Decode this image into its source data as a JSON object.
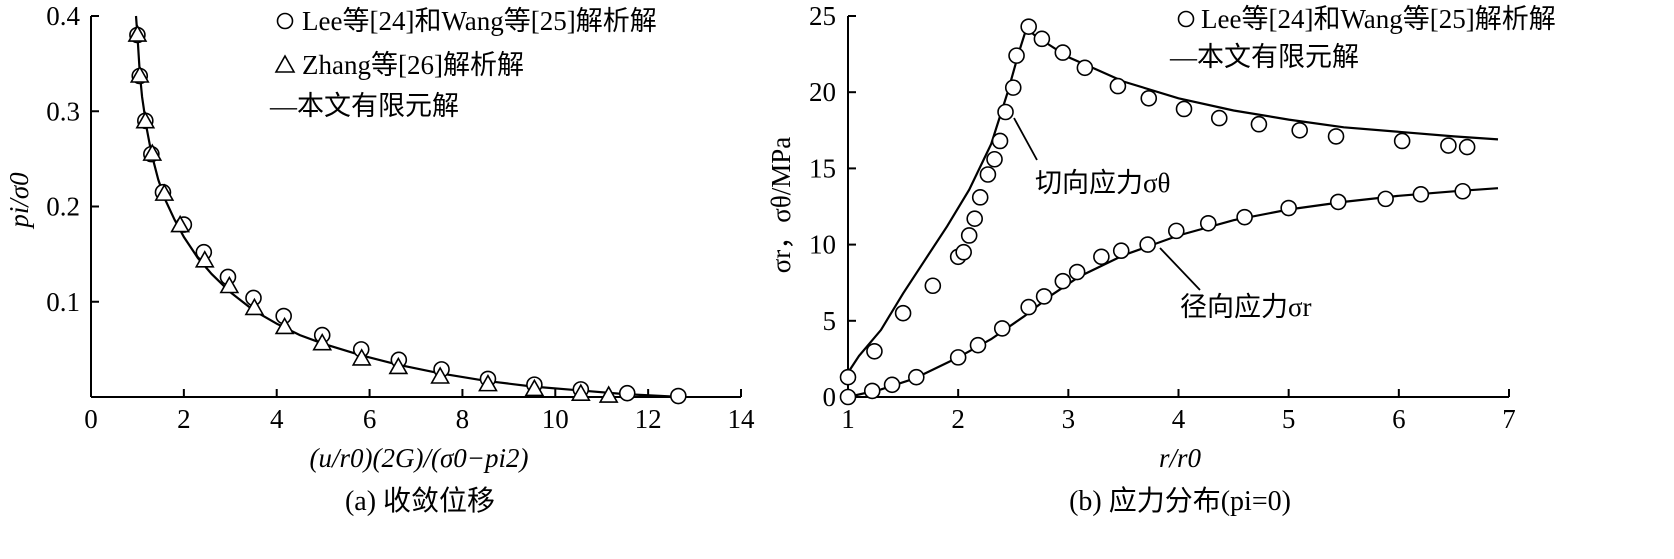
{
  "chart_data": [
    {
      "type": "scatter",
      "caption": "(a) 收敛位移",
      "xlabel": "(u/r0)(2G)/(σ0−pi2)",
      "ylabel": "pi/σ0",
      "xlim": [
        0,
        14
      ],
      "ylim": [
        0,
        0.4
      ],
      "x_ticks": [
        "0",
        "2",
        "4",
        "6",
        "8",
        "10",
        "12",
        "14"
      ],
      "y_ticks": [
        "0.1",
        "0.2",
        "0.3",
        "0.4"
      ],
      "legend_position": "top-right",
      "legend": [
        {
          "marker": "circle",
          "label": "Lee等[24]和Wang等[25]解析解"
        },
        {
          "marker": "triangle",
          "label": "Zhang等[26]解析解"
        },
        {
          "marker": "line",
          "label": "—本文有限元解"
        }
      ],
      "series": [
        {
          "name": "Lee等[24]和Wang等[25]解析解",
          "marker": "circle",
          "x": [
            1.0,
            1.05,
            1.17,
            1.3,
            1.55,
            2.0,
            2.43,
            2.95,
            3.5,
            4.15,
            4.98,
            5.82,
            6.63,
            7.55,
            8.55,
            9.55,
            10.55,
            11.55,
            12.65
          ],
          "y": [
            0.38,
            0.337,
            0.29,
            0.255,
            0.215,
            0.181,
            0.152,
            0.126,
            0.104,
            0.085,
            0.065,
            0.05,
            0.039,
            0.029,
            0.019,
            0.013,
            0.008,
            0.004,
            0.001
          ]
        },
        {
          "name": "Zhang等[26]解析解",
          "marker": "triangle",
          "x": [
            1.0,
            1.05,
            1.17,
            1.32,
            1.58,
            1.92,
            2.45,
            2.98,
            3.52,
            4.17,
            4.98,
            5.83,
            6.62,
            7.52,
            8.55,
            9.55,
            10.55,
            11.15
          ],
          "y": [
            0.38,
            0.337,
            0.289,
            0.255,
            0.213,
            0.18,
            0.143,
            0.116,
            0.093,
            0.073,
            0.056,
            0.04,
            0.031,
            0.021,
            0.013,
            0.008,
            0.003,
            0.001
          ]
        },
        {
          "name": "—本文有限元解",
          "marker": "line",
          "x": [
            0.97,
            1.0,
            1.05,
            1.1,
            1.2,
            1.3,
            1.45,
            1.6,
            1.8,
            2.0,
            2.3,
            2.6,
            3.0,
            3.5,
            4.0,
            4.5,
            5.0,
            5.8,
            6.6,
            7.5,
            8.5,
            9.5,
            10.5,
            11.5,
            12.3,
            12.7
          ],
          "y": [
            0.4,
            0.38,
            0.34,
            0.315,
            0.282,
            0.256,
            0.228,
            0.207,
            0.186,
            0.168,
            0.146,
            0.129,
            0.11,
            0.091,
            0.077,
            0.065,
            0.056,
            0.044,
            0.034,
            0.025,
            0.017,
            0.011,
            0.007,
            0.003,
            0.001,
            0.0
          ]
        }
      ]
    },
    {
      "type": "scatter",
      "caption": "(b) 应力分布(pi=0)",
      "xlabel": "r/r0",
      "ylabel": "σr，σθ/MPa",
      "xlim": [
        1,
        7
      ],
      "ylim": [
        0,
        25
      ],
      "x_ticks": [
        "1",
        "2",
        "3",
        "4",
        "5",
        "6",
        "7"
      ],
      "y_ticks": [
        "0",
        "5",
        "10",
        "15",
        "20",
        "25"
      ],
      "legend_position": "top-right",
      "legend": [
        {
          "marker": "circle",
          "label": "Lee等[24]和Wang等[25]解析解"
        },
        {
          "marker": "line",
          "label": "—本文有限元解"
        }
      ],
      "annotations": [
        {
          "label": "切向应力σθ",
          "x": 2.5,
          "y": 18.5
        },
        {
          "label": "径向应力σr",
          "x": 4.2,
          "y": 9.5
        }
      ],
      "series": [
        {
          "name": "切向应力σθ Lee等[24]和Wang等[25]解析解",
          "marker": "circle",
          "x": [
            1.0,
            1.24,
            1.5,
            1.77,
            2.0,
            2.05,
            2.1,
            2.15,
            2.2,
            2.27,
            2.33,
            2.38,
            2.43,
            2.5,
            2.53,
            2.64,
            2.76,
            2.95,
            3.15,
            3.45,
            3.73,
            4.05,
            4.37,
            4.73,
            5.1,
            5.43,
            6.03,
            6.45,
            6.62
          ],
          "y": [
            1.3,
            3.0,
            5.5,
            7.3,
            9.2,
            9.5,
            10.6,
            11.7,
            13.1,
            14.6,
            15.6,
            16.8,
            18.7,
            20.3,
            22.4,
            24.3,
            23.5,
            22.6,
            21.6,
            20.4,
            19.6,
            18.9,
            18.3,
            17.9,
            17.5,
            17.1,
            16.8,
            16.5,
            16.4
          ]
        },
        {
          "name": "切向应力σθ —本文有限元解",
          "marker": "line",
          "x": [
            1.0,
            1.1,
            1.3,
            1.5,
            1.7,
            1.9,
            2.1,
            2.3,
            2.45,
            2.55,
            2.62,
            2.7,
            2.85,
            3.0,
            3.25,
            3.5,
            4.0,
            4.5,
            5.0,
            5.5,
            6.0,
            6.5,
            6.9
          ],
          "y": [
            1.6,
            2.7,
            4.4,
            6.8,
            9.0,
            11.2,
            13.6,
            16.6,
            20.0,
            22.6,
            24.2,
            23.7,
            23.0,
            22.3,
            21.5,
            20.7,
            19.6,
            18.8,
            18.2,
            17.7,
            17.4,
            17.1,
            16.9
          ]
        },
        {
          "name": "径向应力σr Lee等[24]和Wang等[25]解析解",
          "marker": "circle",
          "x": [
            1.0,
            1.22,
            1.4,
            1.62,
            2.0,
            2.18,
            2.4,
            2.64,
            2.78,
            2.95,
            3.08,
            3.3,
            3.48,
            3.72,
            3.98,
            4.27,
            4.6,
            5.0,
            5.45,
            5.88,
            6.2,
            6.58
          ],
          "y": [
            0.0,
            0.4,
            0.8,
            1.3,
            2.6,
            3.4,
            4.5,
            5.9,
            6.6,
            7.6,
            8.2,
            9.2,
            9.6,
            10.0,
            10.9,
            11.4,
            11.8,
            12.4,
            12.8,
            13.0,
            13.3,
            13.5
          ]
        },
        {
          "name": "径向应力σr —本文有限元解",
          "marker": "line",
          "x": [
            1.0,
            1.3,
            1.6,
            2.0,
            2.3,
            2.6,
            2.85,
            3.1,
            3.5,
            4.0,
            4.5,
            5.0,
            5.5,
            6.0,
            6.5,
            6.9
          ],
          "y": [
            0.0,
            0.5,
            1.2,
            2.6,
            3.8,
            5.3,
            6.7,
            7.9,
            9.3,
            10.6,
            11.6,
            12.3,
            12.8,
            13.2,
            13.5,
            13.7
          ]
        }
      ]
    }
  ]
}
